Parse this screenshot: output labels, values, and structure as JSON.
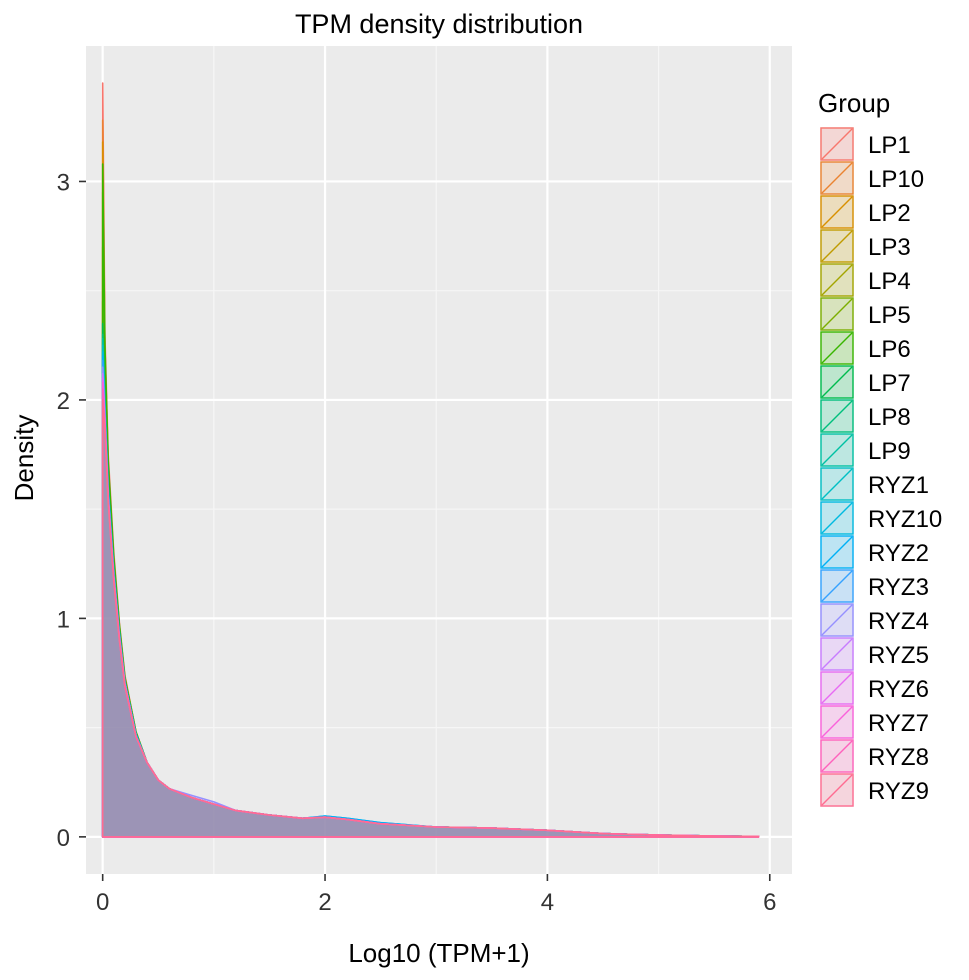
{
  "chart_data": {
    "type": "area",
    "title": "TPM density distribution",
    "xlabel": "Log10 (TPM+1)",
    "ylabel": "Density",
    "xlim": [
      -0.15,
      6.2
    ],
    "ylim": [
      -0.17,
      3.62
    ],
    "x_ticks": [
      0,
      2,
      4,
      6
    ],
    "y_ticks": [
      0,
      1,
      2,
      3
    ],
    "x_tick_labels": [
      "0",
      "2",
      "4",
      "6"
    ],
    "y_tick_labels": [
      "0",
      "1",
      "2",
      "3"
    ],
    "grid": true,
    "legend": {
      "title": "Group",
      "position": "right"
    },
    "x": [
      0,
      0.02,
      0.05,
      0.1,
      0.15,
      0.2,
      0.3,
      0.4,
      0.5,
      0.6,
      0.8,
      1.0,
      1.2,
      1.5,
      1.8,
      2.0,
      2.2,
      2.5,
      3.0,
      3.5,
      4.0,
      4.5,
      5.0,
      5.5,
      5.9
    ],
    "series": [
      {
        "name": "LP1",
        "color": "#F8766D",
        "values": [
          3.45,
          2.3,
          1.75,
          1.3,
          0.98,
          0.74,
          0.48,
          0.34,
          0.26,
          0.22,
          0.18,
          0.15,
          0.12,
          0.1,
          0.085,
          0.09,
          0.08,
          0.06,
          0.045,
          0.04,
          0.03,
          0.015,
          0.008,
          0.004,
          0.002
        ]
      },
      {
        "name": "LP10",
        "color": "#EA8331",
        "values": [
          3.28,
          2.25,
          1.72,
          1.28,
          0.97,
          0.73,
          0.48,
          0.34,
          0.26,
          0.22,
          0.18,
          0.15,
          0.12,
          0.1,
          0.085,
          0.09,
          0.08,
          0.06,
          0.045,
          0.04,
          0.03,
          0.015,
          0.008,
          0.004,
          0.002
        ]
      },
      {
        "name": "LP2",
        "color": "#D89000",
        "values": [
          3.18,
          2.2,
          1.7,
          1.27,
          0.96,
          0.73,
          0.48,
          0.34,
          0.26,
          0.22,
          0.18,
          0.15,
          0.12,
          0.1,
          0.085,
          0.09,
          0.08,
          0.06,
          0.045,
          0.04,
          0.03,
          0.015,
          0.008,
          0.004,
          0.002
        ]
      },
      {
        "name": "LP3",
        "color": "#C09B00",
        "values": [
          2.95,
          2.15,
          1.68,
          1.26,
          0.96,
          0.72,
          0.48,
          0.34,
          0.26,
          0.22,
          0.18,
          0.15,
          0.12,
          0.1,
          0.085,
          0.09,
          0.08,
          0.06,
          0.045,
          0.04,
          0.03,
          0.015,
          0.008,
          0.004,
          0.002
        ]
      },
      {
        "name": "LP4",
        "color": "#A3A500",
        "values": [
          2.7,
          2.1,
          1.66,
          1.25,
          0.95,
          0.72,
          0.47,
          0.34,
          0.26,
          0.22,
          0.18,
          0.15,
          0.12,
          0.1,
          0.085,
          0.09,
          0.08,
          0.06,
          0.045,
          0.04,
          0.03,
          0.015,
          0.008,
          0.004,
          0.002
        ]
      },
      {
        "name": "LP5",
        "color": "#7CAE00",
        "values": [
          2.45,
          2.05,
          1.64,
          1.24,
          0.95,
          0.72,
          0.47,
          0.34,
          0.26,
          0.22,
          0.18,
          0.15,
          0.12,
          0.1,
          0.085,
          0.09,
          0.08,
          0.06,
          0.045,
          0.04,
          0.03,
          0.015,
          0.008,
          0.004,
          0.002
        ]
      },
      {
        "name": "LP6",
        "color": "#39B600",
        "values": [
          3.08,
          2.25,
          1.72,
          1.28,
          0.97,
          0.73,
          0.48,
          0.34,
          0.26,
          0.22,
          0.18,
          0.15,
          0.12,
          0.1,
          0.085,
          0.09,
          0.08,
          0.06,
          0.045,
          0.04,
          0.03,
          0.015,
          0.008,
          0.004,
          0.002
        ]
      },
      {
        "name": "LP7",
        "color": "#00BB4E",
        "values": [
          2.35,
          2.0,
          1.62,
          1.23,
          0.94,
          0.71,
          0.47,
          0.34,
          0.26,
          0.22,
          0.18,
          0.15,
          0.12,
          0.1,
          0.085,
          0.09,
          0.08,
          0.06,
          0.045,
          0.04,
          0.03,
          0.015,
          0.008,
          0.004,
          0.002
        ]
      },
      {
        "name": "LP8",
        "color": "#00BF7D",
        "values": [
          2.3,
          1.98,
          1.6,
          1.22,
          0.94,
          0.71,
          0.47,
          0.34,
          0.26,
          0.22,
          0.18,
          0.15,
          0.12,
          0.1,
          0.085,
          0.09,
          0.08,
          0.06,
          0.045,
          0.04,
          0.03,
          0.015,
          0.008,
          0.004,
          0.002
        ]
      },
      {
        "name": "LP9",
        "color": "#00C1A3",
        "values": [
          2.28,
          1.97,
          1.6,
          1.22,
          0.93,
          0.71,
          0.47,
          0.34,
          0.26,
          0.22,
          0.18,
          0.15,
          0.12,
          0.1,
          0.085,
          0.09,
          0.08,
          0.06,
          0.045,
          0.04,
          0.03,
          0.015,
          0.008,
          0.004,
          0.002
        ]
      },
      {
        "name": "RYZ1",
        "color": "#00BFC4",
        "values": [
          2.25,
          1.96,
          1.59,
          1.21,
          0.93,
          0.71,
          0.47,
          0.34,
          0.26,
          0.22,
          0.18,
          0.15,
          0.12,
          0.1,
          0.085,
          0.09,
          0.08,
          0.06,
          0.045,
          0.04,
          0.03,
          0.015,
          0.008,
          0.004,
          0.002
        ]
      },
      {
        "name": "RYZ10",
        "color": "#00BAE0",
        "values": [
          2.22,
          1.95,
          1.58,
          1.21,
          0.93,
          0.71,
          0.47,
          0.34,
          0.26,
          0.22,
          0.18,
          0.15,
          0.12,
          0.1,
          0.085,
          0.095,
          0.085,
          0.065,
          0.045,
          0.04,
          0.03,
          0.015,
          0.008,
          0.004,
          0.002
        ]
      },
      {
        "name": "RYZ2",
        "color": "#00B0F6",
        "values": [
          2.2,
          1.94,
          1.58,
          1.2,
          0.92,
          0.7,
          0.47,
          0.34,
          0.26,
          0.22,
          0.18,
          0.15,
          0.12,
          0.1,
          0.085,
          0.095,
          0.085,
          0.065,
          0.045,
          0.04,
          0.03,
          0.015,
          0.008,
          0.004,
          0.002
        ]
      },
      {
        "name": "RYZ3",
        "color": "#35A2FF",
        "values": [
          2.18,
          1.93,
          1.57,
          1.2,
          0.92,
          0.7,
          0.46,
          0.34,
          0.26,
          0.22,
          0.18,
          0.15,
          0.12,
          0.1,
          0.085,
          0.09,
          0.08,
          0.06,
          0.045,
          0.04,
          0.03,
          0.015,
          0.008,
          0.004,
          0.002
        ]
      },
      {
        "name": "RYZ4",
        "color": "#9590FF",
        "values": [
          2.15,
          1.92,
          1.56,
          1.19,
          0.92,
          0.7,
          0.46,
          0.34,
          0.26,
          0.22,
          0.19,
          0.16,
          0.12,
          0.1,
          0.085,
          0.09,
          0.08,
          0.06,
          0.045,
          0.04,
          0.03,
          0.015,
          0.008,
          0.004,
          0.002
        ]
      },
      {
        "name": "RYZ5",
        "color": "#C77CFF",
        "values": [
          2.12,
          1.91,
          1.56,
          1.19,
          0.91,
          0.7,
          0.46,
          0.34,
          0.26,
          0.22,
          0.18,
          0.15,
          0.12,
          0.1,
          0.085,
          0.09,
          0.08,
          0.06,
          0.045,
          0.04,
          0.03,
          0.015,
          0.008,
          0.004,
          0.002
        ]
      },
      {
        "name": "RYZ6",
        "color": "#E76BF3",
        "values": [
          2.1,
          1.9,
          1.55,
          1.19,
          0.91,
          0.7,
          0.46,
          0.34,
          0.26,
          0.22,
          0.18,
          0.15,
          0.12,
          0.1,
          0.085,
          0.09,
          0.08,
          0.06,
          0.045,
          0.04,
          0.03,
          0.015,
          0.008,
          0.004,
          0.002
        ]
      },
      {
        "name": "RYZ7",
        "color": "#FA62DB",
        "values": [
          2.08,
          1.89,
          1.55,
          1.18,
          0.91,
          0.69,
          0.46,
          0.34,
          0.26,
          0.22,
          0.18,
          0.15,
          0.12,
          0.1,
          0.085,
          0.09,
          0.08,
          0.06,
          0.045,
          0.04,
          0.03,
          0.015,
          0.008,
          0.004,
          0.002
        ]
      },
      {
        "name": "RYZ8",
        "color": "#FF62BC",
        "values": [
          2.05,
          1.88,
          1.54,
          1.18,
          0.9,
          0.69,
          0.46,
          0.34,
          0.26,
          0.22,
          0.18,
          0.15,
          0.12,
          0.1,
          0.085,
          0.09,
          0.08,
          0.06,
          0.045,
          0.04,
          0.03,
          0.015,
          0.008,
          0.004,
          0.002
        ]
      },
      {
        "name": "RYZ9",
        "color": "#FF6C91",
        "values": [
          2.0,
          1.86,
          1.53,
          1.17,
          0.9,
          0.69,
          0.46,
          0.34,
          0.26,
          0.22,
          0.18,
          0.15,
          0.12,
          0.1,
          0.085,
          0.09,
          0.08,
          0.06,
          0.045,
          0.04,
          0.03,
          0.015,
          0.008,
          0.004,
          0.002
        ]
      }
    ]
  }
}
